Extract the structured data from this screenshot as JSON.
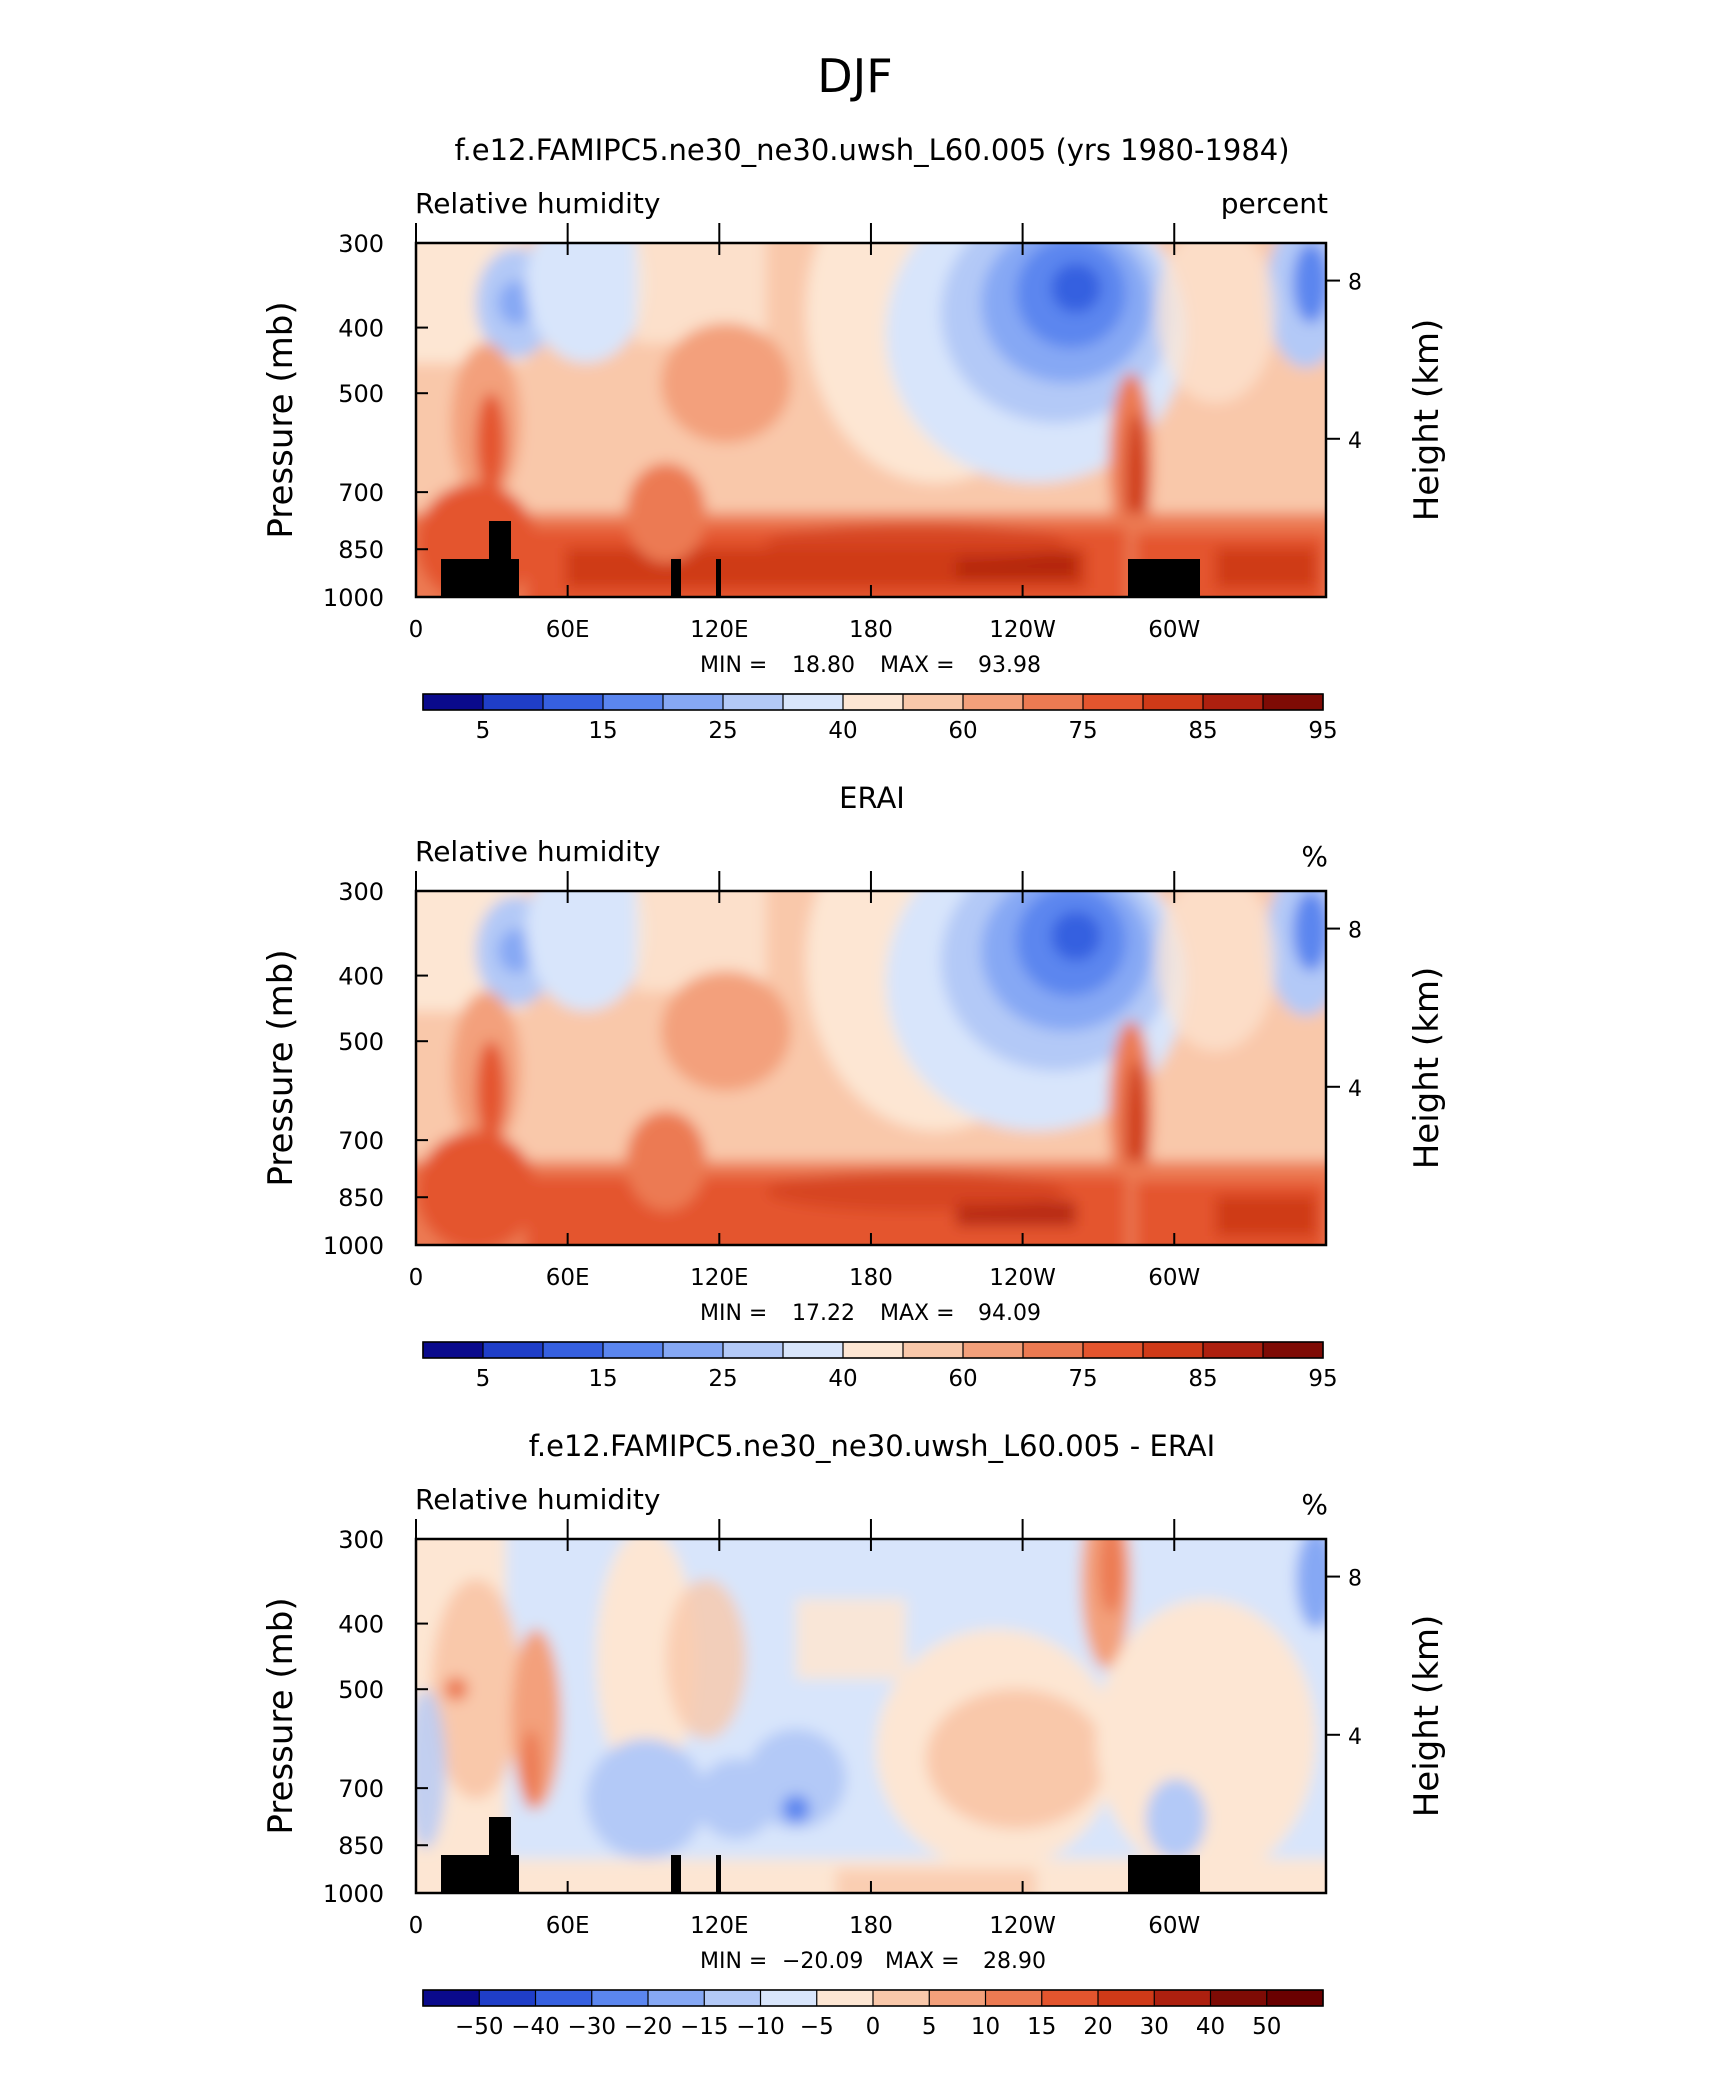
{
  "main_title": "DJF",
  "chart_data": [
    {
      "type": "heatmap",
      "title": "f.e12.FAMIPC5.ne30_ne30.uwsh_L60.005 (yrs 1980-1984)",
      "left_label": "Relative humidity",
      "right_label": "percent",
      "ylabel": "Pressure (mb)",
      "ylabel_right": "Height (km)",
      "yticks": [
        "300",
        "400",
        "500",
        "700",
        "850",
        "1000"
      ],
      "yticks_right": [
        "8",
        "4"
      ],
      "xticks": [
        "0",
        "60E",
        "120E",
        "180",
        "120W",
        "60W"
      ],
      "min_label": "MIN =",
      "min_value": "18.80",
      "max_label": "MAX =",
      "max_value": "93.98",
      "colorbar_labels": [
        "5",
        "15",
        "25",
        "40",
        "60",
        "75",
        "85",
        "95"
      ]
    },
    {
      "type": "heatmap",
      "title": "ERAI",
      "left_label": "Relative humidity",
      "right_label": "%",
      "ylabel": "Pressure (mb)",
      "ylabel_right": "Height (km)",
      "yticks": [
        "300",
        "400",
        "500",
        "700",
        "850",
        "1000"
      ],
      "yticks_right": [
        "8",
        "4"
      ],
      "xticks": [
        "0",
        "60E",
        "120E",
        "180",
        "120W",
        "60W"
      ],
      "min_label": "MIN =",
      "min_value": "17.22",
      "max_label": "MAX =",
      "max_value": "94.09",
      "colorbar_labels": [
        "5",
        "15",
        "25",
        "40",
        "60",
        "75",
        "85",
        "95"
      ]
    },
    {
      "type": "heatmap",
      "title": "f.e12.FAMIPC5.ne30_ne30.uwsh_L60.005 - ERAI",
      "left_label": "Relative humidity",
      "right_label": "%",
      "ylabel": "Pressure (mb)",
      "ylabel_right": "Height (km)",
      "yticks": [
        "300",
        "400",
        "500",
        "700",
        "850",
        "1000"
      ],
      "yticks_right": [
        "8",
        "4"
      ],
      "xticks": [
        "0",
        "60E",
        "120E",
        "180",
        "120W",
        "60W"
      ],
      "min_label": "MIN =",
      "min_value": "−20.09",
      "max_label": "MAX =",
      "max_value": "28.90",
      "colorbar_labels": [
        "−50",
        "−40",
        "−30",
        "−20",
        "−15",
        "−10",
        "−5",
        "0",
        "5",
        "10",
        "15",
        "20",
        "30",
        "40",
        "50"
      ]
    }
  ],
  "colors": {
    "abs_scale": [
      "#0a0a8c",
      "#1f3ec8",
      "#3660e0",
      "#5b86ef",
      "#86a8f4",
      "#b3c9f7",
      "#d8e5fb",
      "#fde6d3",
      "#f9c8aa",
      "#f3a07b",
      "#ec7a52",
      "#e4552e",
      "#cf3a18",
      "#ad200f",
      "#7e0b05"
    ],
    "diff_scale": [
      "#0a0a8c",
      "#1f3ec8",
      "#3660e0",
      "#5b86ef",
      "#86a8f4",
      "#b3c9f7",
      "#d8e5fb",
      "#fde6d3",
      "#f9c8aa",
      "#f3a07b",
      "#ec7a52",
      "#e4552e",
      "#cf3a18",
      "#ad200f",
      "#7e0b05"
    ],
    "topography": "#000000"
  }
}
